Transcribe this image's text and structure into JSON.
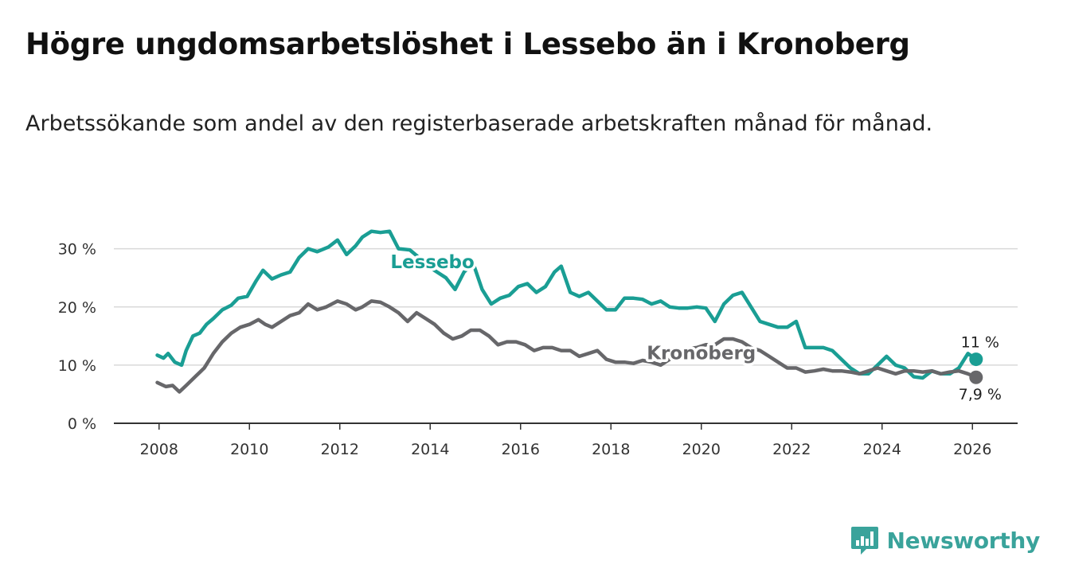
{
  "title": "Högre ungdomsarbetslöshet i Lessebo än i Kronoberg",
  "subtitle": "Arbetssökande som andel av den registerbaserade arbetskraften månad för månad.",
  "brand": {
    "name": "Newsworthy",
    "icon": "newsworthy-logo-icon",
    "color": "#3aa39b"
  },
  "chart_data": {
    "type": "line",
    "title": "Högre ungdomsarbetslöshet i Lessebo än i Kronoberg",
    "xlabel": "",
    "ylabel": "",
    "xlim": [
      2007.0,
      2027.0
    ],
    "ylim": [
      0,
      32
    ],
    "grid": true,
    "y_ticks": [
      0,
      10,
      20,
      30
    ],
    "y_tick_labels": [
      "0 %",
      "10 %",
      "20 %",
      "30 %"
    ],
    "x_ticks": [
      2008,
      2010,
      2012,
      2014,
      2016,
      2018,
      2020,
      2022,
      2024,
      2026
    ],
    "x_tick_labels": [
      "2008",
      "2010",
      "2012",
      "2014",
      "2016",
      "2018",
      "2020",
      "2022",
      "2024",
      "2026"
    ],
    "series": [
      {
        "name": "Lessebo",
        "color": "#1a9e94",
        "end_label": "11 %",
        "x": [
          2007.96,
          2008.1,
          2008.2,
          2008.35,
          2008.5,
          2008.6,
          2008.75,
          2008.9,
          2009.05,
          2009.2,
          2009.4,
          2009.6,
          2009.75,
          2009.95,
          2010.0,
          2010.15,
          2010.3,
          2010.5,
          2010.7,
          2010.9,
          2011.1,
          2011.3,
          2011.5,
          2011.75,
          2011.95,
          2012.15,
          2012.35,
          2012.5,
          2012.7,
          2012.9,
          2013.1,
          2013.3,
          2013.55,
          2013.75,
          2013.95,
          2014.15,
          2014.35,
          2014.55,
          2014.75,
          2014.95,
          2015.15,
          2015.35,
          2015.55,
          2015.75,
          2015.95,
          2016.15,
          2016.35,
          2016.55,
          2016.75,
          2016.9,
          2017.1,
          2017.3,
          2017.5,
          2017.7,
          2017.9,
          2018.1,
          2018.3,
          2018.5,
          2018.7,
          2018.9,
          2019.1,
          2019.3,
          2019.5,
          2019.7,
          2019.9,
          2020.1,
          2020.3,
          2020.5,
          2020.7,
          2020.9,
          2021.1,
          2021.3,
          2021.5,
          2021.7,
          2021.9,
          2022.1,
          2022.3,
          2022.5,
          2022.7,
          2022.9,
          2023.1,
          2023.3,
          2023.5,
          2023.7,
          2023.9,
          2024.1,
          2024.3,
          2024.5,
          2024.7,
          2024.9,
          2025.1,
          2025.3,
          2025.5,
          2025.7,
          2025.9,
          2026.08
        ],
        "y": [
          11.7,
          11.2,
          12.0,
          10.5,
          10.0,
          12.5,
          15.0,
          15.5,
          17.0,
          18.0,
          19.5,
          20.3,
          21.5,
          21.8,
          22.5,
          24.5,
          26.3,
          24.8,
          25.5,
          26.0,
          28.5,
          30.0,
          29.5,
          30.3,
          31.5,
          29.0,
          30.5,
          32.0,
          33.0,
          32.8,
          33.0,
          30.0,
          29.8,
          28.5,
          27.0,
          26.0,
          25.0,
          23.0,
          26.0,
          27.5,
          23.0,
          20.5,
          21.5,
          22.0,
          23.5,
          24.0,
          22.5,
          23.5,
          26.0,
          27.0,
          22.5,
          21.8,
          22.5,
          21.0,
          19.5,
          19.5,
          21.5,
          21.5,
          21.3,
          20.5,
          21.0,
          20.0,
          19.8,
          19.8,
          20.0,
          19.8,
          17.5,
          20.5,
          22.0,
          22.5,
          20.0,
          17.5,
          17.0,
          16.5,
          16.5,
          17.5,
          13.0,
          13.0,
          13.0,
          12.5,
          11.0,
          9.5,
          8.5,
          8.5,
          10.0,
          11.5,
          10.0,
          9.5,
          8.0,
          7.8,
          9.0,
          8.5,
          8.5,
          9.5,
          12.0,
          11.0
        ]
      },
      {
        "name": "Kronoberg",
        "color": "#67676a",
        "end_label": "7,9 %",
        "x": [
          2007.96,
          2008.15,
          2008.3,
          2008.45,
          2008.6,
          2008.8,
          2009.0,
          2009.2,
          2009.4,
          2009.6,
          2009.8,
          2010.0,
          2010.2,
          2010.35,
          2010.5,
          2010.7,
          2010.9,
          2011.1,
          2011.3,
          2011.5,
          2011.7,
          2011.95,
          2012.15,
          2012.35,
          2012.5,
          2012.7,
          2012.9,
          2013.1,
          2013.3,
          2013.5,
          2013.7,
          2013.9,
          2014.1,
          2014.3,
          2014.5,
          2014.7,
          2014.9,
          2015.1,
          2015.3,
          2015.5,
          2015.7,
          2015.9,
          2016.1,
          2016.3,
          2016.5,
          2016.7,
          2016.9,
          2017.1,
          2017.3,
          2017.5,
          2017.7,
          2017.9,
          2018.1,
          2018.3,
          2018.5,
          2018.7,
          2018.9,
          2019.1,
          2019.3,
          2019.5,
          2019.7,
          2019.9,
          2020.1,
          2020.3,
          2020.5,
          2020.7,
          2020.9,
          2021.1,
          2021.3,
          2021.5,
          2021.7,
          2021.9,
          2022.1,
          2022.3,
          2022.5,
          2022.7,
          2022.9,
          2023.1,
          2023.3,
          2023.5,
          2023.7,
          2023.9,
          2024.1,
          2024.3,
          2024.5,
          2024.7,
          2024.9,
          2025.1,
          2025.3,
          2025.5,
          2025.7,
          2025.9,
          2026.08
        ],
        "y": [
          7.0,
          6.3,
          6.5,
          5.4,
          6.5,
          8.0,
          9.5,
          12.0,
          14.0,
          15.5,
          16.5,
          17.0,
          17.8,
          17.0,
          16.5,
          17.5,
          18.5,
          19.0,
          20.5,
          19.5,
          20.0,
          21.0,
          20.5,
          19.5,
          20.0,
          21.0,
          20.8,
          20.0,
          19.0,
          17.5,
          19.0,
          18.0,
          17.0,
          15.5,
          14.5,
          15.0,
          16.0,
          16.0,
          15.0,
          13.5,
          14.0,
          14.0,
          13.5,
          12.5,
          13.0,
          13.0,
          12.5,
          12.5,
          11.5,
          12.0,
          12.5,
          11.0,
          10.5,
          10.5,
          10.3,
          10.8,
          10.5,
          10.0,
          11.0,
          12.5,
          12.8,
          13.0,
          13.5,
          13.5,
          14.5,
          14.5,
          14.0,
          13.0,
          12.5,
          11.5,
          10.5,
          9.5,
          9.5,
          8.8,
          9.0,
          9.3,
          9.0,
          9.0,
          8.8,
          8.5,
          9.0,
          9.5,
          9.0,
          8.5,
          9.0,
          9.0,
          8.8,
          9.0,
          8.5,
          8.8,
          9.0,
          8.5,
          7.9
        ]
      }
    ]
  }
}
